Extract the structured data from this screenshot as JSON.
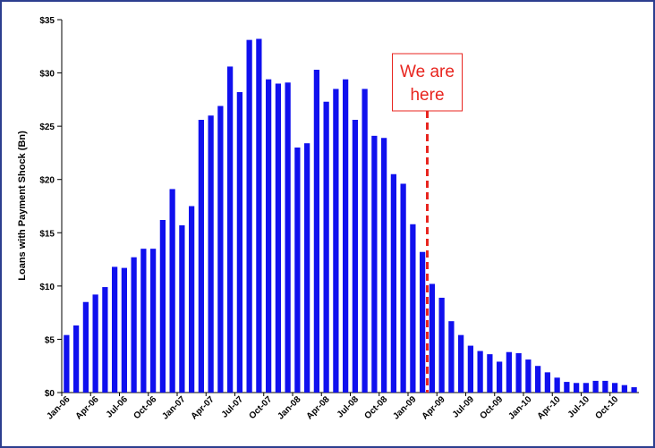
{
  "chart_data": {
    "type": "bar",
    "ylabel": "Loans with Payment Shock (Bn)",
    "xlabel": "",
    "ylim": [
      0,
      35
    ],
    "y_ticks": [
      "$0",
      "$5",
      "$10",
      "$15",
      "$20",
      "$25",
      "$30",
      "$35"
    ],
    "y_tick_values": [
      0,
      5,
      10,
      15,
      20,
      25,
      30,
      35
    ],
    "grid": false,
    "legend": "none",
    "bar_color": "#1010ee",
    "marker_color": "#e8251f",
    "x_tick_labels": [
      {
        "index": 0,
        "label": "Jan-06"
      },
      {
        "index": 3,
        "label": "Apr-06"
      },
      {
        "index": 6,
        "label": "Jul-06"
      },
      {
        "index": 9,
        "label": "Oct-06"
      },
      {
        "index": 12,
        "label": "Jan-07"
      },
      {
        "index": 15,
        "label": "Apr-07"
      },
      {
        "index": 18,
        "label": "Jul-07"
      },
      {
        "index": 21,
        "label": "Oct-07"
      },
      {
        "index": 24,
        "label": "Jan-08"
      },
      {
        "index": 27,
        "label": "Apr-08"
      },
      {
        "index": 30,
        "label": "Jul-08"
      },
      {
        "index": 33,
        "label": "Oct-08"
      },
      {
        "index": 36,
        "label": "Jan-09"
      },
      {
        "index": 39,
        "label": "Apr-09"
      },
      {
        "index": 42,
        "label": "Jul-09"
      },
      {
        "index": 45,
        "label": "Oct-09"
      },
      {
        "index": 48,
        "label": "Jan-10"
      },
      {
        "index": 51,
        "label": "Apr-10"
      },
      {
        "index": 54,
        "label": "Jul-10"
      },
      {
        "index": 57,
        "label": "Oct-10"
      }
    ],
    "categories": [
      "Jan-06",
      "Feb-06",
      "Mar-06",
      "Apr-06",
      "May-06",
      "Jun-06",
      "Jul-06",
      "Aug-06",
      "Sep-06",
      "Oct-06",
      "Nov-06",
      "Dec-06",
      "Jan-07",
      "Feb-07",
      "Mar-07",
      "Apr-07",
      "May-07",
      "Jun-07",
      "Jul-07",
      "Aug-07",
      "Sep-07",
      "Oct-07",
      "Nov-07",
      "Dec-07",
      "Jan-08",
      "Feb-08",
      "Mar-08",
      "Apr-08",
      "May-08",
      "Jun-08",
      "Jul-08",
      "Aug-08",
      "Sep-08",
      "Oct-08",
      "Nov-08",
      "Dec-08",
      "Jan-09",
      "Feb-09",
      "Mar-09",
      "Apr-09",
      "May-09",
      "Jun-09",
      "Jul-09",
      "Aug-09",
      "Sep-09",
      "Oct-09",
      "Nov-09",
      "Dec-09",
      "Jan-10",
      "Feb-10",
      "Mar-10",
      "Apr-10",
      "May-10",
      "Jun-10",
      "Jul-10",
      "Aug-10",
      "Sep-10",
      "Oct-10",
      "Nov-10",
      "Dec-10"
    ],
    "values": [
      5.4,
      6.3,
      8.5,
      9.2,
      9.9,
      11.8,
      11.7,
      12.7,
      13.5,
      13.5,
      16.2,
      19.1,
      15.7,
      17.5,
      25.6,
      26.0,
      26.9,
      30.6,
      28.2,
      33.1,
      33.2,
      29.4,
      29.0,
      29.1,
      23.0,
      23.4,
      30.3,
      27.3,
      28.5,
      29.4,
      25.6,
      28.5,
      24.1,
      23.9,
      20.5,
      19.6,
      15.8,
      13.2,
      10.2,
      8.9,
      6.7,
      5.4,
      4.4,
      3.9,
      3.6,
      2.9,
      3.8,
      3.7,
      3.1,
      2.5,
      1.9,
      1.4,
      1.0,
      0.9,
      0.9,
      1.1,
      1.1,
      0.9,
      0.7,
      0.5
    ],
    "marker": {
      "after_index": 37,
      "label_line1": "We are",
      "label_line2": "here"
    }
  }
}
